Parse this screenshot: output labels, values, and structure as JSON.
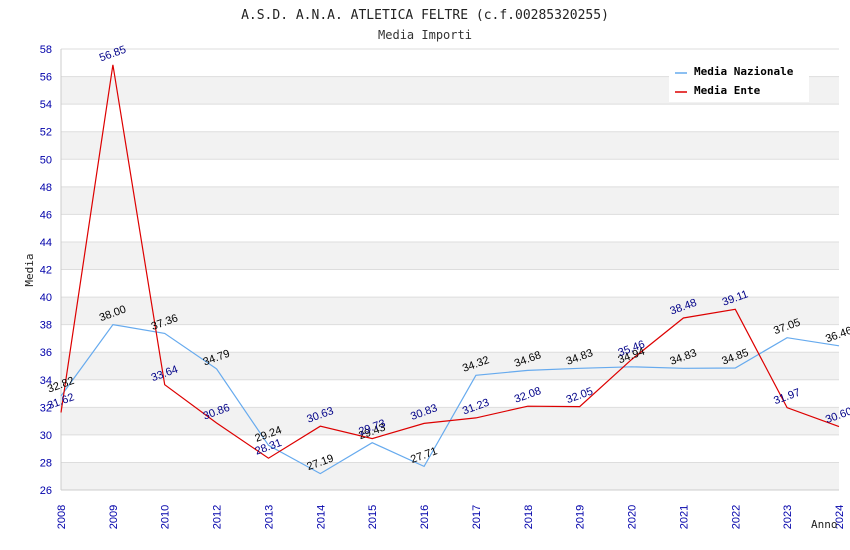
{
  "chart_data": {
    "type": "line",
    "title": "A.S.D. A.N.A. ATLETICA FELTRE (c.f.00285320255)",
    "subtitle": "Media Importi",
    "xlabel": "Anno",
    "ylabel": "Media",
    "ylim": [
      26,
      58
    ],
    "ytick_step": 2,
    "grid": true,
    "legend_position": "top-right",
    "categories": [
      "2008",
      "2009",
      "2010",
      "2012",
      "2013",
      "2014",
      "2015",
      "2016",
      "2017",
      "2018",
      "2019",
      "2020",
      "2021",
      "2022",
      "2023",
      "2024"
    ],
    "series": [
      {
        "name": "Media Nazionale",
        "color": "#66aaee",
        "values": [
          32.82,
          38.0,
          37.36,
          34.79,
          29.24,
          27.19,
          29.43,
          27.71,
          34.32,
          34.68,
          34.83,
          34.94,
          34.83,
          34.85,
          37.05,
          36.46
        ],
        "labels": [
          "32.82",
          "38.00",
          "37.36",
          "34.79",
          "29.24",
          "27.19",
          "29.43",
          "27.71",
          "34.32",
          "34.68",
          "34.83",
          "34.94",
          "34.83",
          "34.85",
          "37.05",
          "36.46"
        ]
      },
      {
        "name": "Media Ente",
        "color": "#dd0000",
        "values": [
          31.62,
          56.85,
          33.64,
          30.86,
          28.31,
          30.63,
          29.73,
          30.83,
          31.23,
          32.08,
          32.05,
          35.46,
          38.48,
          39.11,
          31.97,
          30.6
        ],
        "labels": [
          "31.62",
          "56.85",
          "33.64",
          "30.86",
          "28.31",
          "30.63",
          "29.73",
          "30.83",
          "31.23",
          "32.08",
          "32.05",
          "35.46",
          "38.48",
          "39.11",
          "31.97",
          "30.60"
        ]
      }
    ]
  }
}
